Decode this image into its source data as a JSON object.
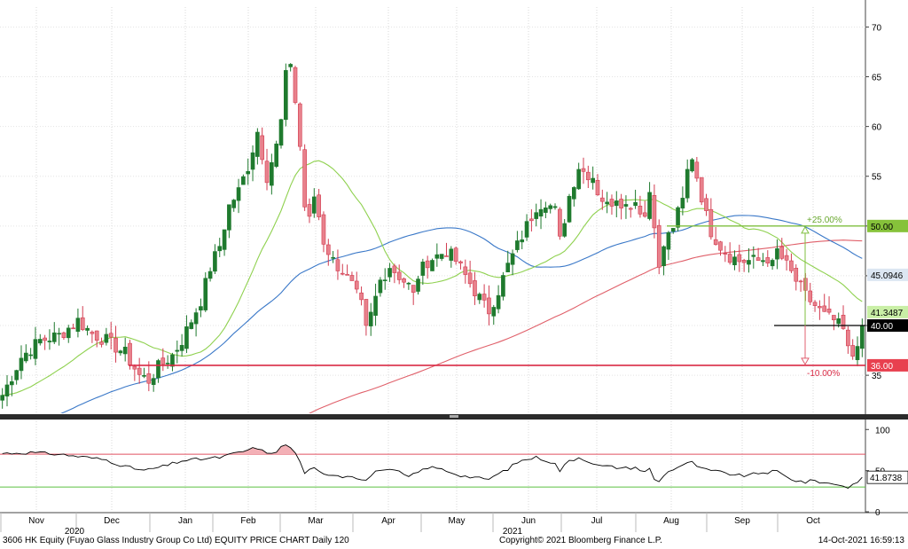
{
  "chart_data": {
    "type": "candlestick",
    "title": "",
    "price_axis": {
      "ticks": [
        "70",
        "65",
        "60",
        "55",
        "50",
        "45",
        "40",
        "35"
      ],
      "range": [
        31,
        72
      ]
    },
    "rsi_axis": {
      "ticks": [
        "100",
        "50",
        "0"
      ],
      "range": [
        0,
        110
      ]
    },
    "x_axis": {
      "months": [
        "Nov",
        "Dec",
        "Jan",
        "Feb",
        "Mar",
        "Apr",
        "May",
        "Jun",
        "Jul",
        "Aug",
        "Sep",
        "Oct"
      ],
      "years": [
        "2020",
        "2021"
      ]
    },
    "overlay_labels": {
      "up_target": "+25.00%",
      "down_target": "-10.00%",
      "rsi_value": "41.8738"
    },
    "price_tags": [
      {
        "name": "up-target",
        "label": "50.00",
        "value": 50.0,
        "color": "#86c23a",
        "text_color": "#000000"
      },
      {
        "name": "sma-50",
        "label": "45.0946",
        "value": 45.0946,
        "color": "#dce6f2",
        "text_color": "#000000"
      },
      {
        "name": "sma-20",
        "label": "41.3487",
        "value": 41.3487,
        "color": "#c9efa6",
        "text_color": "#000000"
      },
      {
        "name": "last-price",
        "label": "40.00",
        "value": 40.0,
        "color": "#000000",
        "text_color": "#ffffff"
      },
      {
        "name": "down-target",
        "label": "36.00",
        "value": 36.0,
        "color": "#e8404f",
        "text_color": "#ffffff"
      }
    ],
    "levels": [
      {
        "name": "target-up-line",
        "value": 50.0,
        "color": "#7fbf3f"
      },
      {
        "name": "current-price-line",
        "value": 40.0,
        "color": "#000000"
      },
      {
        "name": "target-down-line",
        "value": 36.0,
        "color": "#d92a45"
      }
    ],
    "series_keys": [
      {
        "name": "price-candles",
        "color": "#d23c50"
      },
      {
        "name": "sma-20-line",
        "color": "#8fd14f"
      },
      {
        "name": "sma-50-line",
        "color": "#3a78c8"
      },
      {
        "name": "sma-200-line",
        "color": "#e0606a"
      },
      {
        "name": "rsi-line",
        "color": "#000000"
      }
    ],
    "price_control_points": [
      [
        0,
        33.0
      ],
      [
        4,
        36.8
      ],
      [
        8,
        38.5
      ],
      [
        12,
        39.0
      ],
      [
        16,
        40.5
      ],
      [
        19,
        39.2
      ],
      [
        22,
        38.5
      ],
      [
        26,
        37.2
      ],
      [
        29,
        35.0
      ],
      [
        31,
        34.5
      ],
      [
        33,
        35.8
      ],
      [
        36,
        37.0
      ],
      [
        38,
        38.5
      ],
      [
        40,
        40.5
      ],
      [
        42,
        42.5
      ],
      [
        44,
        45.8
      ],
      [
        46,
        48.0
      ],
      [
        48,
        52.0
      ],
      [
        50,
        53.5
      ],
      [
        52,
        56.0
      ],
      [
        54,
        59.5
      ],
      [
        56,
        55.0
      ],
      [
        58,
        58.0
      ],
      [
        59,
        60.5
      ],
      [
        60,
        65.0
      ],
      [
        61,
        66.5
      ],
      [
        62,
        62.5
      ],
      [
        63,
        58.0
      ],
      [
        64,
        52.0
      ],
      [
        65,
        50.5
      ],
      [
        66,
        53.0
      ],
      [
        67,
        51.0
      ],
      [
        68,
        48.5
      ],
      [
        70,
        46.5
      ],
      [
        72,
        45.5
      ],
      [
        74,
        44.0
      ],
      [
        76,
        42.0
      ],
      [
        77,
        39.5
      ],
      [
        78,
        41.0
      ],
      [
        80,
        44.5
      ],
      [
        82,
        46.0
      ],
      [
        84,
        45.0
      ],
      [
        86,
        44.0
      ],
      [
        87,
        43.0
      ],
      [
        88,
        45.0
      ],
      [
        90,
        46.5
      ],
      [
        92,
        47.0
      ],
      [
        94,
        47.5
      ],
      [
        96,
        46.5
      ],
      [
        98,
        45.0
      ],
      [
        100,
        43.5
      ],
      [
        102,
        42.0
      ],
      [
        103,
        41.5
      ],
      [
        105,
        43.5
      ],
      [
        107,
        46.0
      ],
      [
        109,
        48.0
      ],
      [
        111,
        50.0
      ],
      [
        113,
        52.0
      ],
      [
        115,
        52.5
      ],
      [
        117,
        51.5
      ],
      [
        118,
        48.5
      ],
      [
        120,
        53.0
      ],
      [
        122,
        56.0
      ],
      [
        123,
        55.5
      ],
      [
        125,
        55.0
      ],
      [
        126,
        53.5
      ],
      [
        128,
        52.0
      ],
      [
        130,
        53.0
      ],
      [
        132,
        52.0
      ],
      [
        134,
        52.5
      ],
      [
        136,
        51.0
      ],
      [
        137,
        53.5
      ],
      [
        138,
        50.5
      ],
      [
        139,
        45.5
      ],
      [
        140,
        48.0
      ],
      [
        142,
        50.0
      ],
      [
        144,
        52.5
      ],
      [
        145,
        55.5
      ],
      [
        146,
        57.0
      ],
      [
        147,
        55.0
      ],
      [
        148,
        53.0
      ],
      [
        149,
        51.0
      ],
      [
        150,
        49.5
      ],
      [
        152,
        48.0
      ],
      [
        154,
        47.0
      ],
      [
        156,
        46.5
      ],
      [
        158,
        46.5
      ],
      [
        160,
        46.5
      ],
      [
        162,
        46.8
      ],
      [
        163,
        46.0
      ],
      [
        164,
        47.5
      ],
      [
        166,
        46.0
      ],
      [
        168,
        44.5
      ],
      [
        170,
        43.0
      ],
      [
        172,
        42.0
      ],
      [
        174,
        41.0
      ],
      [
        176,
        40.5
      ],
      [
        178,
        39.5
      ],
      [
        179,
        37.5
      ],
      [
        180,
        37.0
      ],
      [
        181,
        38.5
      ],
      [
        182,
        40.0
      ]
    ],
    "rsi_control_points": [
      [
        0,
        71
      ],
      [
        6,
        72
      ],
      [
        12,
        70
      ],
      [
        18,
        66
      ],
      [
        22,
        63
      ],
      [
        26,
        55
      ],
      [
        30,
        50
      ],
      [
        34,
        55
      ],
      [
        38,
        62
      ],
      [
        42,
        64
      ],
      [
        46,
        66
      ],
      [
        50,
        72
      ],
      [
        54,
        78
      ],
      [
        56,
        70
      ],
      [
        58,
        74
      ],
      [
        60,
        82
      ],
      [
        62,
        72
      ],
      [
        64,
        48
      ],
      [
        66,
        52
      ],
      [
        68,
        45
      ],
      [
        70,
        46
      ],
      [
        72,
        43
      ],
      [
        74,
        44
      ],
      [
        76,
        40
      ],
      [
        77,
        38
      ],
      [
        78,
        44
      ],
      [
        80,
        52
      ],
      [
        82,
        50
      ],
      [
        84,
        48
      ],
      [
        86,
        42
      ],
      [
        88,
        48
      ],
      [
        90,
        54
      ],
      [
        92,
        53
      ],
      [
        94,
        50
      ],
      [
        96,
        46
      ],
      [
        98,
        43
      ],
      [
        100,
        42
      ],
      [
        102,
        39
      ],
      [
        103,
        40
      ],
      [
        105,
        46
      ],
      [
        107,
        52
      ],
      [
        109,
        60
      ],
      [
        111,
        64
      ],
      [
        113,
        66
      ],
      [
        115,
        63
      ],
      [
        117,
        58
      ],
      [
        118,
        50
      ],
      [
        120,
        62
      ],
      [
        122,
        66
      ],
      [
        124,
        62
      ],
      [
        126,
        56
      ],
      [
        128,
        55
      ],
      [
        130,
        54
      ],
      [
        132,
        53
      ],
      [
        134,
        54
      ],
      [
        136,
        48
      ],
      [
        137,
        52
      ],
      [
        138,
        40
      ],
      [
        139,
        36
      ],
      [
        140,
        45
      ],
      [
        142,
        52
      ],
      [
        144,
        57
      ],
      [
        146,
        60
      ],
      [
        148,
        52
      ],
      [
        150,
        50
      ],
      [
        152,
        48
      ],
      [
        154,
        46
      ],
      [
        156,
        44
      ],
      [
        158,
        44
      ],
      [
        160,
        47
      ],
      [
        162,
        48
      ],
      [
        164,
        49
      ],
      [
        166,
        42
      ],
      [
        168,
        38
      ],
      [
        170,
        36
      ],
      [
        172,
        38
      ],
      [
        174,
        35
      ],
      [
        176,
        34
      ],
      [
        178,
        32
      ],
      [
        179,
        29
      ],
      [
        180,
        33
      ],
      [
        182,
        41.87
      ]
    ]
  },
  "footer": {
    "left": "3606 HK Equity (Fuyao Glass Industry Group Co Ltd) EQUITY PRICE CHART  Daily 120",
    "center": "Copyright© 2021 Bloomberg Finance L.P.",
    "right": "14-Oct-2021 16:59:13"
  }
}
